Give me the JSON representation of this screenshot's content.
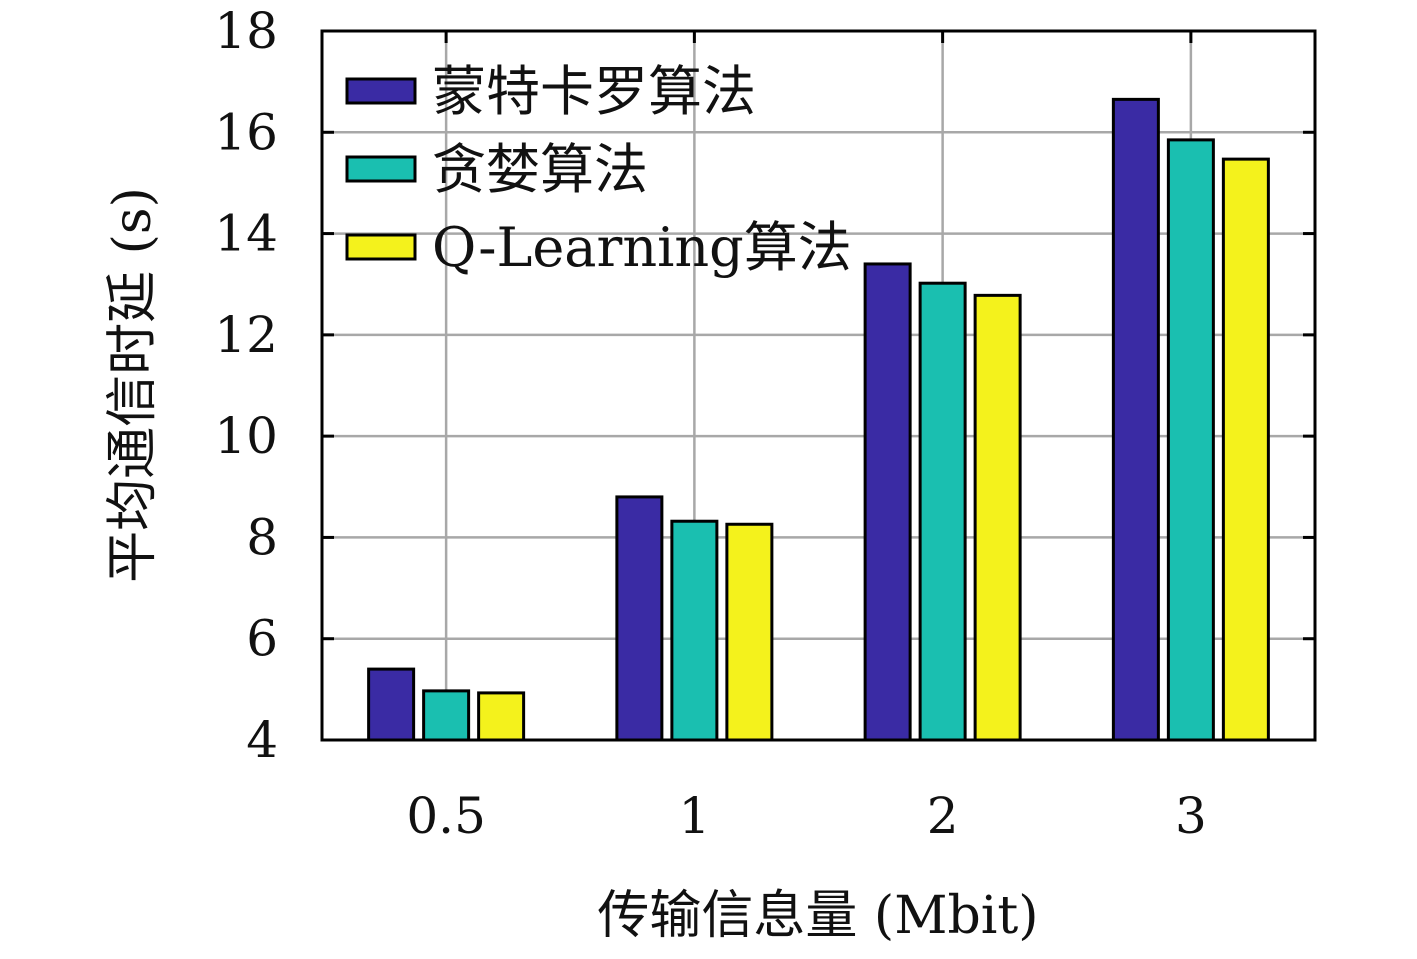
{
  "chart_data": {
    "type": "bar",
    "xlabel": "传输信息量 (Mbit)",
    "ylabel": "平均通信时延 (s)",
    "categories": [
      "0.5",
      "1",
      "2",
      "3"
    ],
    "ylim": [
      4,
      18
    ],
    "yticks": [
      4,
      6,
      8,
      10,
      12,
      14,
      16,
      18
    ],
    "grid": true,
    "legend_position": "top-left",
    "series": [
      {
        "name": "蒙特卡罗算法",
        "color": "#3a2ba4",
        "values": [
          5.4,
          8.8,
          13.4,
          16.65
        ]
      },
      {
        "name": "贪婪算法",
        "color": "#1abfb0",
        "values": [
          4.97,
          8.32,
          13.02,
          15.85
        ]
      },
      {
        "name": "Q-Learning算法",
        "color": "#f4f21c",
        "values": [
          4.93,
          8.26,
          12.78,
          15.47
        ]
      }
    ]
  }
}
